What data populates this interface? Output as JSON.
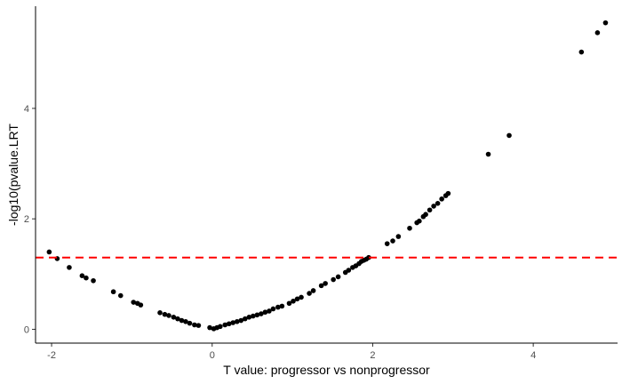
{
  "chart_data": {
    "type": "scatter",
    "xlabel": "T value: progressor vs nonprogressor",
    "ylabel": "-log10(pvalue.LRT",
    "xlim": [
      -2.2,
      5.05
    ],
    "ylim": [
      -0.25,
      5.85
    ],
    "x_ticks": [
      -2,
      0,
      2,
      4
    ],
    "y_ticks": [
      0,
      2,
      4
    ],
    "grid": false,
    "point_color": "#000000",
    "threshold": {
      "y": 1.3,
      "color": "#ff0000",
      "style": "dashed"
    },
    "points": [
      {
        "x": -2.03,
        "y": 1.4
      },
      {
        "x": -1.93,
        "y": 1.28
      },
      {
        "x": -1.78,
        "y": 1.12
      },
      {
        "x": -1.62,
        "y": 0.97
      },
      {
        "x": -1.57,
        "y": 0.93
      },
      {
        "x": -1.48,
        "y": 0.88
      },
      {
        "x": -1.23,
        "y": 0.68
      },
      {
        "x": -1.14,
        "y": 0.61
      },
      {
        "x": -0.98,
        "y": 0.49
      },
      {
        "x": -0.93,
        "y": 0.47
      },
      {
        "x": -0.89,
        "y": 0.44
      },
      {
        "x": -0.65,
        "y": 0.3
      },
      {
        "x": -0.59,
        "y": 0.27
      },
      {
        "x": -0.54,
        "y": 0.25
      },
      {
        "x": -0.48,
        "y": 0.22
      },
      {
        "x": -0.43,
        "y": 0.19
      },
      {
        "x": -0.38,
        "y": 0.16
      },
      {
        "x": -0.33,
        "y": 0.14
      },
      {
        "x": -0.28,
        "y": 0.11
      },
      {
        "x": -0.22,
        "y": 0.08
      },
      {
        "x": -0.17,
        "y": 0.07
      },
      {
        "x": -0.03,
        "y": 0.03
      },
      {
        "x": 0.02,
        "y": 0.01
      },
      {
        "x": 0.06,
        "y": 0.03
      },
      {
        "x": 0.1,
        "y": 0.05
      },
      {
        "x": 0.16,
        "y": 0.08
      },
      {
        "x": 0.21,
        "y": 0.1
      },
      {
        "x": 0.26,
        "y": 0.12
      },
      {
        "x": 0.31,
        "y": 0.14
      },
      {
        "x": 0.36,
        "y": 0.16
      },
      {
        "x": 0.41,
        "y": 0.19
      },
      {
        "x": 0.46,
        "y": 0.22
      },
      {
        "x": 0.51,
        "y": 0.24
      },
      {
        "x": 0.56,
        "y": 0.26
      },
      {
        "x": 0.61,
        "y": 0.28
      },
      {
        "x": 0.66,
        "y": 0.31
      },
      {
        "x": 0.71,
        "y": 0.33
      },
      {
        "x": 0.76,
        "y": 0.37
      },
      {
        "x": 0.82,
        "y": 0.4
      },
      {
        "x": 0.87,
        "y": 0.42
      },
      {
        "x": 0.96,
        "y": 0.47
      },
      {
        "x": 1.01,
        "y": 0.51
      },
      {
        "x": 1.06,
        "y": 0.55
      },
      {
        "x": 1.11,
        "y": 0.58
      },
      {
        "x": 1.21,
        "y": 0.65
      },
      {
        "x": 1.26,
        "y": 0.7
      },
      {
        "x": 1.36,
        "y": 0.79
      },
      {
        "x": 1.41,
        "y": 0.83
      },
      {
        "x": 1.51,
        "y": 0.9
      },
      {
        "x": 1.57,
        "y": 0.95
      },
      {
        "x": 1.66,
        "y": 1.03
      },
      {
        "x": 1.7,
        "y": 1.07
      },
      {
        "x": 1.75,
        "y": 1.12
      },
      {
        "x": 1.79,
        "y": 1.15
      },
      {
        "x": 1.83,
        "y": 1.19
      },
      {
        "x": 1.86,
        "y": 1.23
      },
      {
        "x": 1.89,
        "y": 1.25
      },
      {
        "x": 1.92,
        "y": 1.27
      },
      {
        "x": 1.95,
        "y": 1.3
      },
      {
        "x": 2.18,
        "y": 1.55
      },
      {
        "x": 2.25,
        "y": 1.6
      },
      {
        "x": 2.32,
        "y": 1.68
      },
      {
        "x": 2.46,
        "y": 1.83
      },
      {
        "x": 2.55,
        "y": 1.93
      },
      {
        "x": 2.58,
        "y": 1.96
      },
      {
        "x": 2.63,
        "y": 2.04
      },
      {
        "x": 2.66,
        "y": 2.08
      },
      {
        "x": 2.71,
        "y": 2.16
      },
      {
        "x": 2.76,
        "y": 2.23
      },
      {
        "x": 2.81,
        "y": 2.28
      },
      {
        "x": 2.86,
        "y": 2.36
      },
      {
        "x": 2.91,
        "y": 2.42
      },
      {
        "x": 2.94,
        "y": 2.46
      },
      {
        "x": 3.44,
        "y": 3.17
      },
      {
        "x": 3.7,
        "y": 3.51
      },
      {
        "x": 4.6,
        "y": 5.02
      },
      {
        "x": 4.8,
        "y": 5.37
      },
      {
        "x": 4.9,
        "y": 5.55
      }
    ]
  }
}
